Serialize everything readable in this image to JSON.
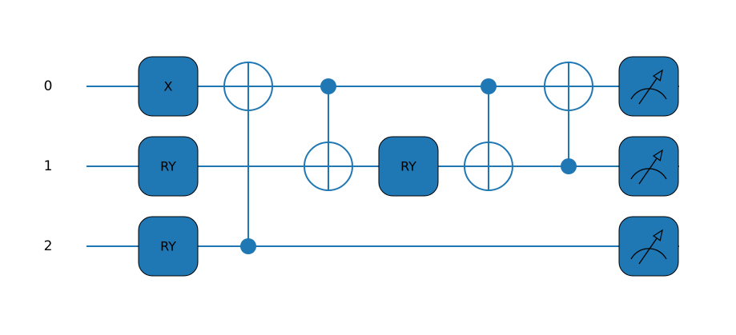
{
  "colors": {
    "wire": "#1f77b4",
    "gate_fill": "#1f77b4",
    "gate_border": "#000000",
    "text": "#000000",
    "background": "#ffffff"
  },
  "wires": [
    {
      "label": "0"
    },
    {
      "label": "1"
    },
    {
      "label": "2"
    }
  ],
  "operations": [
    {
      "type": "gate",
      "label": "X",
      "wire": 0,
      "column": 1
    },
    {
      "type": "gate",
      "label": "RY",
      "wire": 1,
      "column": 1
    },
    {
      "type": "gate",
      "label": "RY",
      "wire": 2,
      "column": 1
    },
    {
      "type": "cnot",
      "control": 2,
      "target": 0,
      "column": 2
    },
    {
      "type": "cnot",
      "control": 0,
      "target": 1,
      "column": 3
    },
    {
      "type": "gate",
      "label": "RY",
      "wire": 1,
      "column": 4
    },
    {
      "type": "cnot",
      "control": 0,
      "target": 1,
      "column": 5
    },
    {
      "type": "cnot",
      "control": 1,
      "target": 0,
      "column": 6
    },
    {
      "type": "measure",
      "wire": 0,
      "column": 7,
      "icon": "meter-icon"
    },
    {
      "type": "measure",
      "wire": 1,
      "column": 7,
      "icon": "meter-icon"
    },
    {
      "type": "measure",
      "wire": 2,
      "column": 7,
      "icon": "meter-icon"
    }
  ]
}
